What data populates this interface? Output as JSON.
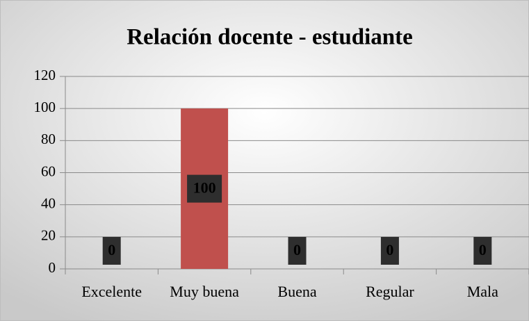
{
  "chart_data": {
    "type": "bar",
    "title": "Relación docente - estudiante",
    "categories": [
      "Excelente",
      "Muy buena",
      "Buena",
      "Regular",
      "Mala"
    ],
    "values": [
      0,
      100,
      0,
      0,
      0
    ],
    "color": "#c0504d",
    "ylim": [
      0,
      120
    ],
    "yticks": [
      0,
      20,
      40,
      60,
      80,
      100,
      120
    ],
    "grid": true
  }
}
